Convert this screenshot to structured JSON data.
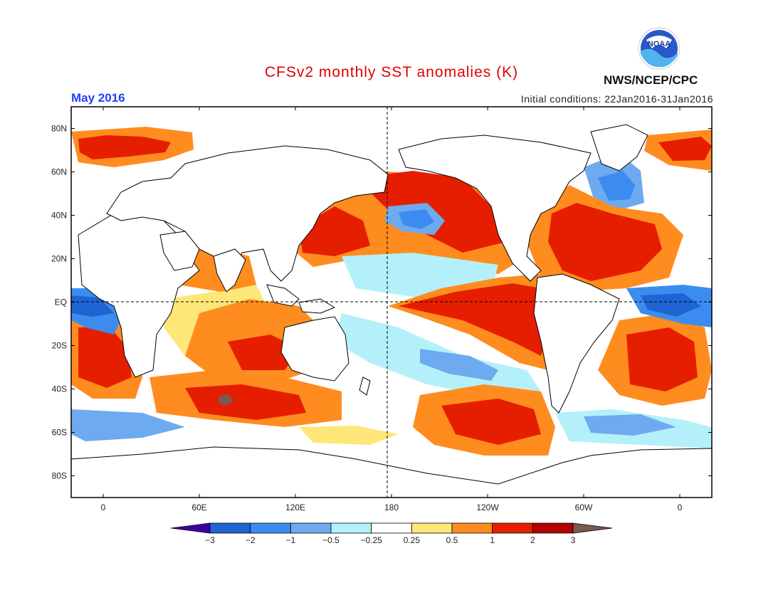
{
  "header": {
    "title": "CFSv2 monthly SST anomalies (K)",
    "title_color": "#e00000",
    "period": "May 2016",
    "period_color": "#2040ff",
    "initial_conditions": "Initial conditions: 22Jan2016-31Jan2016",
    "agency": "NWS/NCEP/CPC",
    "logo_text": "NOAA"
  },
  "map": {
    "projection": "cylindrical-equidistant",
    "lon_range": [
      -20,
      380
    ],
    "lat_range": [
      -90,
      90
    ],
    "lat_labels": [
      "80N",
      "60N",
      "40N",
      "20N",
      "EQ",
      "20S",
      "40S",
      "60S",
      "80S"
    ],
    "lon_labels": [
      "0",
      "60E",
      "120E",
      "180",
      "120W",
      "60W",
      "0"
    ],
    "ocean_color": "#ffffff",
    "coast_color": "#000000"
  },
  "colorbar": {
    "bounds": [
      "-3",
      "-2",
      "-1",
      "-0.5",
      "-0.25",
      "0.25",
      "0.5",
      "1",
      "2",
      "3"
    ],
    "colors": [
      "#3c00a0",
      "#1e64d2",
      "#3c8cf0",
      "#6eaaf0",
      "#b4f0fa",
      "#ffffff",
      "#ffe678",
      "#ff8c1e",
      "#e61e00",
      "#b40000",
      "#7a5a50"
    ]
  }
}
